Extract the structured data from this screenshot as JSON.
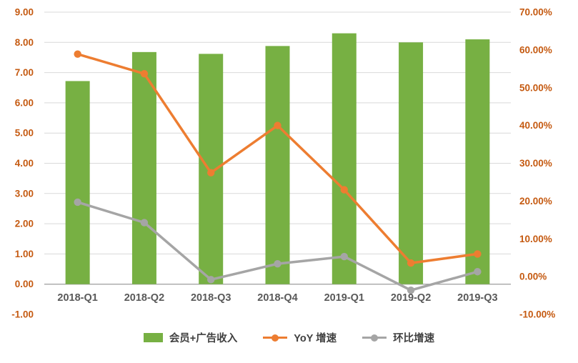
{
  "chart_data": {
    "type": "combo",
    "title": "",
    "categories": [
      "2018-Q1",
      "2018-Q2",
      "2018-Q3",
      "2018-Q4",
      "2019-Q1",
      "2019-Q2",
      "2019-Q3"
    ],
    "series": [
      {
        "name": "会员+广告收入",
        "type": "bar",
        "axis": "left",
        "color": "#77B043",
        "values": [
          6.72,
          7.68,
          7.62,
          7.88,
          8.3,
          8.0,
          8.1
        ]
      },
      {
        "name": "YoY 增速",
        "type": "line",
        "axis": "right",
        "color": "#ED7D31",
        "values": [
          58.9,
          53.7,
          27.5,
          40.0,
          23.0,
          3.6,
          6.0
        ]
      },
      {
        "name": "环比增速",
        "type": "line",
        "axis": "right",
        "color": "#A5A5A5",
        "values": [
          19.7,
          14.3,
          -0.8,
          3.4,
          5.3,
          -3.6,
          1.3
        ]
      }
    ],
    "left_axis": {
      "min": -1,
      "max": 9,
      "step": 1,
      "ticks": [
        "9.00",
        "8.00",
        "7.00",
        "6.00",
        "5.00",
        "4.00",
        "3.00",
        "2.00",
        "1.00",
        "0.00",
        "-1.00"
      ]
    },
    "right_axis": {
      "min": -10,
      "max": 70,
      "step": 10,
      "ticks": [
        "70.00%",
        "60.00%",
        "50.00%",
        "40.00%",
        "30.00%",
        "20.00%",
        "10.00%",
        "0.00%",
        "-10.00%"
      ]
    },
    "grid": true,
    "legend_position": "bottom",
    "colors": {
      "axis_labels": "#C55A11",
      "x_labels": "#595959",
      "gridline": "#D9D9D9",
      "zero_line": "#A6A6A6"
    }
  }
}
